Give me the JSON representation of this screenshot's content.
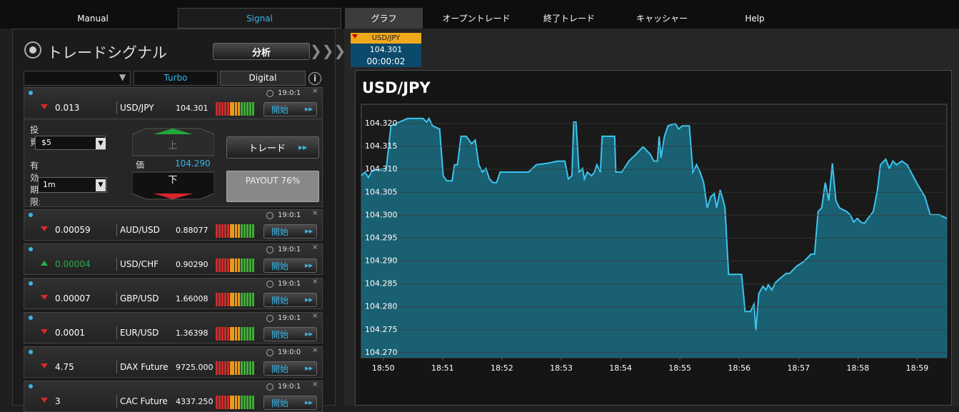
{
  "nav": {
    "tabs": [
      "Manual",
      "Signal",
      "グラフ",
      "オープントレード",
      "終了トレード",
      "キャッシャー",
      "Help"
    ],
    "active": 1,
    "selected": 2
  },
  "panel": {
    "title": "トレードシグナル",
    "analyze": "分析",
    "tabs": [
      "Turbo",
      "Digital"
    ]
  },
  "signals": [
    {
      "direction": "down",
      "change": "0.013",
      "pair": "USD/JPY",
      "price": "104.301",
      "time": "19:0:1",
      "button": "開始"
    },
    {
      "direction": "down",
      "change": "0.00059",
      "pair": "AUD/USD",
      "price": "0.88077",
      "time": "19:0:1",
      "button": "開始"
    },
    {
      "direction": "up",
      "change": "0.00004",
      "pair": "USD/CHF",
      "price": "0.90290",
      "time": "19:0:1",
      "button": "開始"
    },
    {
      "direction": "down",
      "change": "0.00007",
      "pair": "GBP/USD",
      "price": "1.66008",
      "time": "19:0:1",
      "button": "開始"
    },
    {
      "direction": "down",
      "change": "0.0001",
      "pair": "EUR/USD",
      "price": "1.36398",
      "time": "19:0:1",
      "button": "開始"
    },
    {
      "direction": "down",
      "change": "4.75",
      "pair": "DAX Future",
      "price": "9725.000",
      "time": "19:0:0",
      "button": "開始"
    },
    {
      "direction": "down",
      "change": "3",
      "pair": "CAC Future",
      "price": "4337.250",
      "time": "19:0:1",
      "button": "開始"
    }
  ],
  "trade": {
    "invest_label": "投資",
    "invest": "$5",
    "expiry_label": "有効期限:",
    "expiry": "1m",
    "up": "上",
    "price_label": "価",
    "price": "104.290",
    "down": "下",
    "trade": "トレード",
    "payout": "PAYOUT 76%"
  },
  "quote": {
    "pair": "USD/JPY",
    "price": "104.301",
    "timer": "00:00:02"
  },
  "chart_data": {
    "type": "area",
    "title": "USD/JPY",
    "color": "#3ec4ec",
    "fill": "#1a6d84",
    "grid": true,
    "xlim": [
      1129.63,
      1139.5
    ],
    "xticks": [
      {
        "value": 1130,
        "label": "18:50"
      },
      {
        "value": 1131,
        "label": "18:51"
      },
      {
        "value": 1132,
        "label": "18:52"
      },
      {
        "value": 1133,
        "label": "18:53"
      },
      {
        "value": 1134,
        "label": "18:54"
      },
      {
        "value": 1135,
        "label": "18:55"
      },
      {
        "value": 1136,
        "label": "18:56"
      },
      {
        "value": 1137,
        "label": "18:57"
      },
      {
        "value": 1138,
        "label": "18:58"
      },
      {
        "value": 1139,
        "label": "18:59"
      }
    ],
    "ylim": [
      104.2689,
      104.3242
    ],
    "yticks": [
      {
        "value": 104.27,
        "label": "104.270"
      },
      {
        "value": 104.275,
        "label": "104.275"
      },
      {
        "value": 104.28,
        "label": "104.280"
      },
      {
        "value": 104.285,
        "label": "104.285"
      },
      {
        "value": 104.29,
        "label": "104.290"
      },
      {
        "value": 104.295,
        "label": "104.295"
      },
      {
        "value": 104.3,
        "label": "104.300"
      },
      {
        "value": 104.305,
        "label": "104.305"
      },
      {
        "value": 104.31,
        "label": "104.310"
      },
      {
        "value": 104.315,
        "label": "104.315"
      },
      {
        "value": 104.32,
        "label": "104.320"
      }
    ],
    "x": [
      1129.63,
      1129.69,
      1129.75,
      1129.81,
      1130.05,
      1130.13,
      1130.41,
      1130.53,
      1130.67,
      1130.73,
      1130.77,
      1130.83,
      1130.95,
      1131.01,
      1131.07,
      1131.16,
      1131.2,
      1131.25,
      1131.31,
      1131.4,
      1131.49,
      1131.55,
      1131.61,
      1131.67,
      1131.73,
      1131.79,
      1131.85,
      1131.91,
      1131.97,
      1132.21,
      1132.45,
      1132.58,
      1132.76,
      1132.94,
      1133.06,
      1133.12,
      1133.18,
      1133.21,
      1133.25,
      1133.3,
      1133.36,
      1133.39,
      1133.44,
      1133.51,
      1133.56,
      1133.6,
      1133.66,
      1133.69,
      1133.9,
      1133.92,
      1134.02,
      1134.14,
      1134.26,
      1134.38,
      1134.5,
      1134.56,
      1134.62,
      1134.65,
      1134.68,
      1134.74,
      1134.8,
      1134.92,
      1134.98,
      1135.04,
      1135.16,
      1135.22,
      1135.28,
      1135.34,
      1135.4,
      1135.46,
      1135.52,
      1135.58,
      1135.62,
      1135.68,
      1135.73,
      1135.76,
      1135.82,
      1136.04,
      1136.1,
      1136.19,
      1136.25,
      1136.28,
      1136.33,
      1136.4,
      1136.45,
      1136.49,
      1136.55,
      1136.61,
      1136.67,
      1136.79,
      1136.85,
      1136.97,
      1137.09,
      1137.15,
      1137.21,
      1137.27,
      1137.33,
      1137.39,
      1137.45,
      1137.51,
      1137.57,
      1137.63,
      1137.69,
      1137.81,
      1137.87,
      1137.93,
      1137.99,
      1138.05,
      1138.11,
      1138.17,
      1138.26,
      1138.33,
      1138.38,
      1138.47,
      1138.53,
      1138.59,
      1138.65,
      1138.74,
      1138.83,
      1139.01,
      1139.13,
      1139.22,
      1139.37,
      1139.5
    ],
    "values": [
      104.3086,
      104.3094,
      104.3082,
      104.3097,
      104.3102,
      104.3195,
      104.3211,
      104.3211,
      104.3211,
      104.3203,
      104.3211,
      104.3195,
      104.3188,
      104.3086,
      104.3075,
      104.3075,
      104.311,
      104.311,
      104.3172,
      104.3172,
      104.3156,
      104.3164,
      104.311,
      104.3094,
      104.3102,
      104.3079,
      104.3071,
      104.3071,
      104.3094,
      104.3094,
      104.3094,
      104.311,
      104.3113,
      104.3118,
      104.3118,
      104.3079,
      104.3086,
      104.3203,
      104.3203,
      104.3094,
      104.3102,
      104.3079,
      104.3094,
      104.3086,
      104.3094,
      104.311,
      104.3094,
      104.3172,
      104.3172,
      104.3094,
      104.3094,
      104.3118,
      104.3133,
      104.3149,
      104.3133,
      104.3118,
      104.3118,
      104.3172,
      104.3125,
      104.3172,
      104.3195,
      104.32,
      104.3188,
      104.3195,
      104.3195,
      104.3094,
      104.311,
      104.3094,
      104.3071,
      104.3016,
      104.304,
      104.3047,
      104.3016,
      104.3055,
      104.3032,
      104.3016,
      104.2871,
      104.2871,
      104.279,
      104.279,
      104.2806,
      104.2748,
      104.2829,
      104.2845,
      104.2837,
      104.2848,
      104.2837,
      104.2853,
      104.286,
      104.2873,
      104.2873,
      104.2889,
      104.2899,
      104.2907,
      104.2915,
      104.2915,
      104.3008,
      104.3016,
      104.3071,
      104.3032,
      104.3113,
      104.3032,
      104.3016,
      104.3008,
      104.3001,
      104.2985,
      104.2993,
      104.2985,
      104.2982,
      104.2993,
      104.3008,
      104.3055,
      104.311,
      104.3122,
      104.3102,
      104.3118,
      104.311,
      104.3118,
      104.311,
      104.3066,
      104.304,
      104.3001,
      104.3001,
      104.2993
    ]
  }
}
